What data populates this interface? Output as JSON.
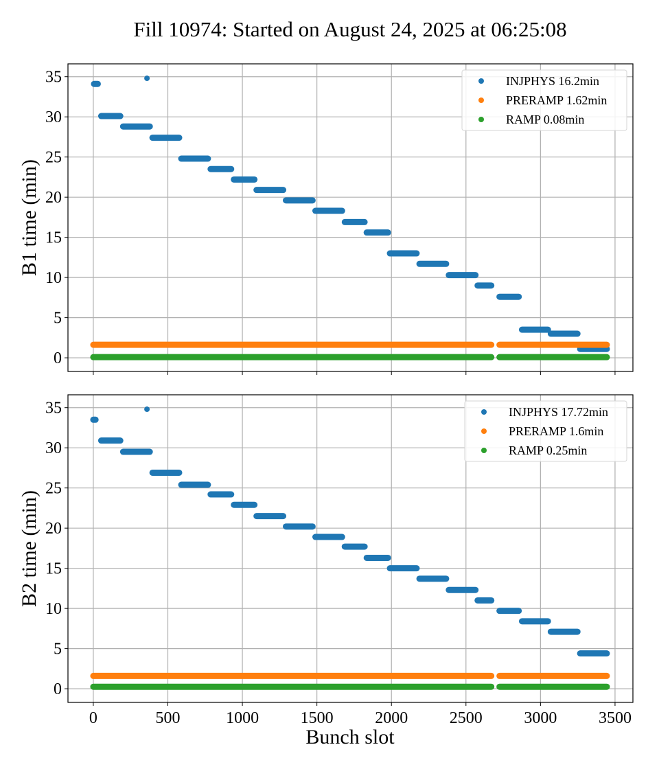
{
  "chart_data": {
    "type": "scatter",
    "title": "Fill 10974: Started on August 24, 2025 at 06:25:08",
    "xlabel": "Bunch slot",
    "xlim": [
      -170,
      3620
    ],
    "xticks": [
      0,
      500,
      1000,
      1500,
      2000,
      2500,
      3000,
      3500
    ],
    "grid": true,
    "shared_x": true,
    "colors": {
      "INJPHYS": "#1f77b4",
      "PRERAMP": "#ff7f0e",
      "RAMP": "#2ca02c"
    },
    "panels": [
      {
        "ylabel": "B1 time (min)",
        "ylim": [
          -1.7,
          36.6
        ],
        "yticks": [
          0,
          5,
          10,
          15,
          20,
          25,
          30,
          35
        ],
        "legend_position": "top-right",
        "series": [
          {
            "name": "INJPHYS",
            "legend": "INJPHYS 16.2min",
            "segments": [
              {
                "x0": 5,
                "x1": 30,
                "y": 34.1
              },
              {
                "x0": 360,
                "x1": 360,
                "y": 34.8
              },
              {
                "x0": 53,
                "x1": 181,
                "y": 30.1
              },
              {
                "x0": 200,
                "x1": 379,
                "y": 28.8
              },
              {
                "x0": 397,
                "x1": 576,
                "y": 27.4
              },
              {
                "x0": 590,
                "x1": 769,
                "y": 24.8
              },
              {
                "x0": 787,
                "x1": 925,
                "y": 23.5
              },
              {
                "x0": 943,
                "x1": 1081,
                "y": 22.2
              },
              {
                "x0": 1095,
                "x1": 1274,
                "y": 20.9
              },
              {
                "x0": 1292,
                "x1": 1471,
                "y": 19.6
              },
              {
                "x0": 1490,
                "x1": 1669,
                "y": 18.3
              },
              {
                "x0": 1687,
                "x1": 1820,
                "y": 16.9
              },
              {
                "x0": 1834,
                "x1": 1977,
                "y": 15.6
              },
              {
                "x0": 1990,
                "x1": 2169,
                "y": 13.0
              },
              {
                "x0": 2188,
                "x1": 2367,
                "y": 11.7
              },
              {
                "x0": 2385,
                "x1": 2564,
                "y": 10.3
              },
              {
                "x0": 2578,
                "x1": 2670,
                "y": 9.0
              },
              {
                "x0": 2725,
                "x1": 2854,
                "y": 7.6
              },
              {
                "x0": 2876,
                "x1": 3050,
                "y": 3.5
              },
              {
                "x0": 3069,
                "x1": 3248,
                "y": 3.0
              },
              {
                "x0": 3266,
                "x1": 3445,
                "y": 1.1
              }
            ]
          },
          {
            "name": "PRERAMP",
            "legend": "PRERAMP 1.62min",
            "segments": [
              {
                "x0": 0,
                "x1": 2670,
                "y": 1.62
              },
              {
                "x0": 2725,
                "x1": 3445,
                "y": 1.62
              }
            ]
          },
          {
            "name": "RAMP",
            "legend": "RAMP 0.08min",
            "segments": [
              {
                "x0": 0,
                "x1": 2670,
                "y": 0.08
              },
              {
                "x0": 2725,
                "x1": 3445,
                "y": 0.08
              }
            ]
          }
        ]
      },
      {
        "ylabel": "B2 time (min)",
        "ylim": [
          -1.7,
          36.6
        ],
        "yticks": [
          0,
          5,
          10,
          15,
          20,
          25,
          30,
          35
        ],
        "legend_position": "top-right",
        "series": [
          {
            "name": "INJPHYS",
            "legend": "INJPHYS 17.72min",
            "segments": [
              {
                "x0": 0,
                "x1": 15,
                "y": 33.5
              },
              {
                "x0": 360,
                "x1": 360,
                "y": 34.8
              },
              {
                "x0": 53,
                "x1": 181,
                "y": 30.9
              },
              {
                "x0": 200,
                "x1": 379,
                "y": 29.5
              },
              {
                "x0": 397,
                "x1": 576,
                "y": 26.9
              },
              {
                "x0": 590,
                "x1": 769,
                "y": 25.4
              },
              {
                "x0": 787,
                "x1": 925,
                "y": 24.2
              },
              {
                "x0": 943,
                "x1": 1081,
                "y": 22.9
              },
              {
                "x0": 1095,
                "x1": 1274,
                "y": 21.5
              },
              {
                "x0": 1292,
                "x1": 1471,
                "y": 20.2
              },
              {
                "x0": 1490,
                "x1": 1669,
                "y": 18.9
              },
              {
                "x0": 1687,
                "x1": 1820,
                "y": 17.7
              },
              {
                "x0": 1834,
                "x1": 1977,
                "y": 16.3
              },
              {
                "x0": 1990,
                "x1": 2169,
                "y": 15.0
              },
              {
                "x0": 2188,
                "x1": 2367,
                "y": 13.7
              },
              {
                "x0": 2385,
                "x1": 2564,
                "y": 12.3
              },
              {
                "x0": 2578,
                "x1": 2670,
                "y": 11.0
              },
              {
                "x0": 2725,
                "x1": 2854,
                "y": 9.7
              },
              {
                "x0": 2876,
                "x1": 3050,
                "y": 8.4
              },
              {
                "x0": 3069,
                "x1": 3248,
                "y": 7.1
              },
              {
                "x0": 3266,
                "x1": 3445,
                "y": 4.4
              }
            ]
          },
          {
            "name": "PRERAMP",
            "legend": "PRERAMP 1.6min",
            "segments": [
              {
                "x0": 0,
                "x1": 2670,
                "y": 1.6
              },
              {
                "x0": 2725,
                "x1": 3445,
                "y": 1.6
              }
            ]
          },
          {
            "name": "RAMP",
            "legend": "RAMP 0.25min",
            "segments": [
              {
                "x0": 0,
                "x1": 2670,
                "y": 0.25
              },
              {
                "x0": 2725,
                "x1": 3445,
                "y": 0.25
              }
            ]
          }
        ]
      }
    ]
  }
}
